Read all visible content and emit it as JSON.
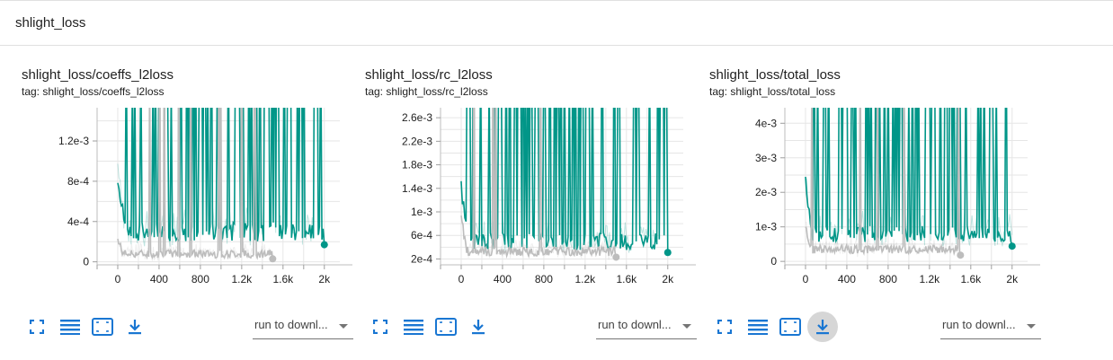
{
  "group": {
    "title": "shlight_loss"
  },
  "cards": [
    {
      "title": "shlight_loss/coeffs_l2loss",
      "tag": "tag: shlight_loss/coeffs_l2loss",
      "run_select": "run to downl...",
      "chart_data": {
        "type": "line",
        "x_ticks": [
          "0",
          "400",
          "800",
          "1.2k",
          "1.6k",
          "2k"
        ],
        "y_ticks": [
          "0",
          "4e-4",
          "8e-4",
          "1.2e-3"
        ],
        "xlim": [
          -200,
          2150
        ],
        "ylim": [
          -3e-05,
          0.00153
        ],
        "series": [
          {
            "color": "#009688",
            "x_range": [
              0,
              2000
            ],
            "base": 0.0003,
            "noise": 0.0001,
            "spikes": 0.35,
            "end": 0.00017,
            "seed": 3
          },
          {
            "color": "#bdbdbd",
            "x_range": [
              0,
              1500
            ],
            "base": 8e-05,
            "noise": 4e-05,
            "spikes": 0.03,
            "end": 3e-05,
            "seed": 7
          }
        ]
      }
    },
    {
      "title": "shlight_loss/rc_l2loss",
      "tag": "tag: shlight_loss/rc_l2loss",
      "run_select": "run to downl...",
      "chart_data": {
        "type": "line",
        "x_ticks": [
          "0",
          "400",
          "800",
          "1.2k",
          "1.6k",
          "2k"
        ],
        "y_ticks": [
          "2e-4",
          "6e-4",
          "1e-3",
          "1.4e-3",
          "1.8e-3",
          "2.2e-3",
          "2.6e-3"
        ],
        "xlim": [
          -200,
          2150
        ],
        "ylim": [
          0.0001,
          0.00277
        ],
        "series": [
          {
            "color": "#009688",
            "x_range": [
              0,
              2000
            ],
            "base": 0.0005,
            "noise": 0.00015,
            "spikes": 0.35,
            "end": 0.00031,
            "seed": 11
          },
          {
            "color": "#bdbdbd",
            "x_range": [
              0,
              1500
            ],
            "base": 0.00033,
            "noise": 8e-05,
            "spikes": 0.03,
            "end": 0.00023,
            "seed": 13
          }
        ]
      }
    },
    {
      "title": "shlight_loss/total_loss",
      "tag": "tag: shlight_loss/total_loss",
      "run_select": "run to downl...",
      "chart_data": {
        "type": "line",
        "x_ticks": [
          "0",
          "400",
          "800",
          "1.2k",
          "1.6k",
          "2k"
        ],
        "y_ticks": [
          "0",
          "1e-3",
          "2e-3",
          "3e-3",
          "4e-3"
        ],
        "xlim": [
          -200,
          2150
        ],
        "ylim": [
          -0.0001,
          0.00445
        ],
        "series": [
          {
            "color": "#009688",
            "x_range": [
              0,
              2000
            ],
            "base": 0.0008,
            "noise": 0.00025,
            "spikes": 0.35,
            "end": 0.00044,
            "seed": 17
          },
          {
            "color": "#bdbdbd",
            "x_range": [
              0,
              1500
            ],
            "base": 0.00035,
            "noise": 0.00012,
            "spikes": 0.03,
            "end": 0.00018,
            "seed": 19
          }
        ]
      }
    }
  ],
  "toolbar_icons": [
    "fullscreen-icon",
    "toggle-log-scale-icon",
    "fit-domain-icon",
    "download-icon"
  ],
  "colors": {
    "accent": "#1976d2",
    "teal": "#009688",
    "gray": "#bdbdbd"
  }
}
